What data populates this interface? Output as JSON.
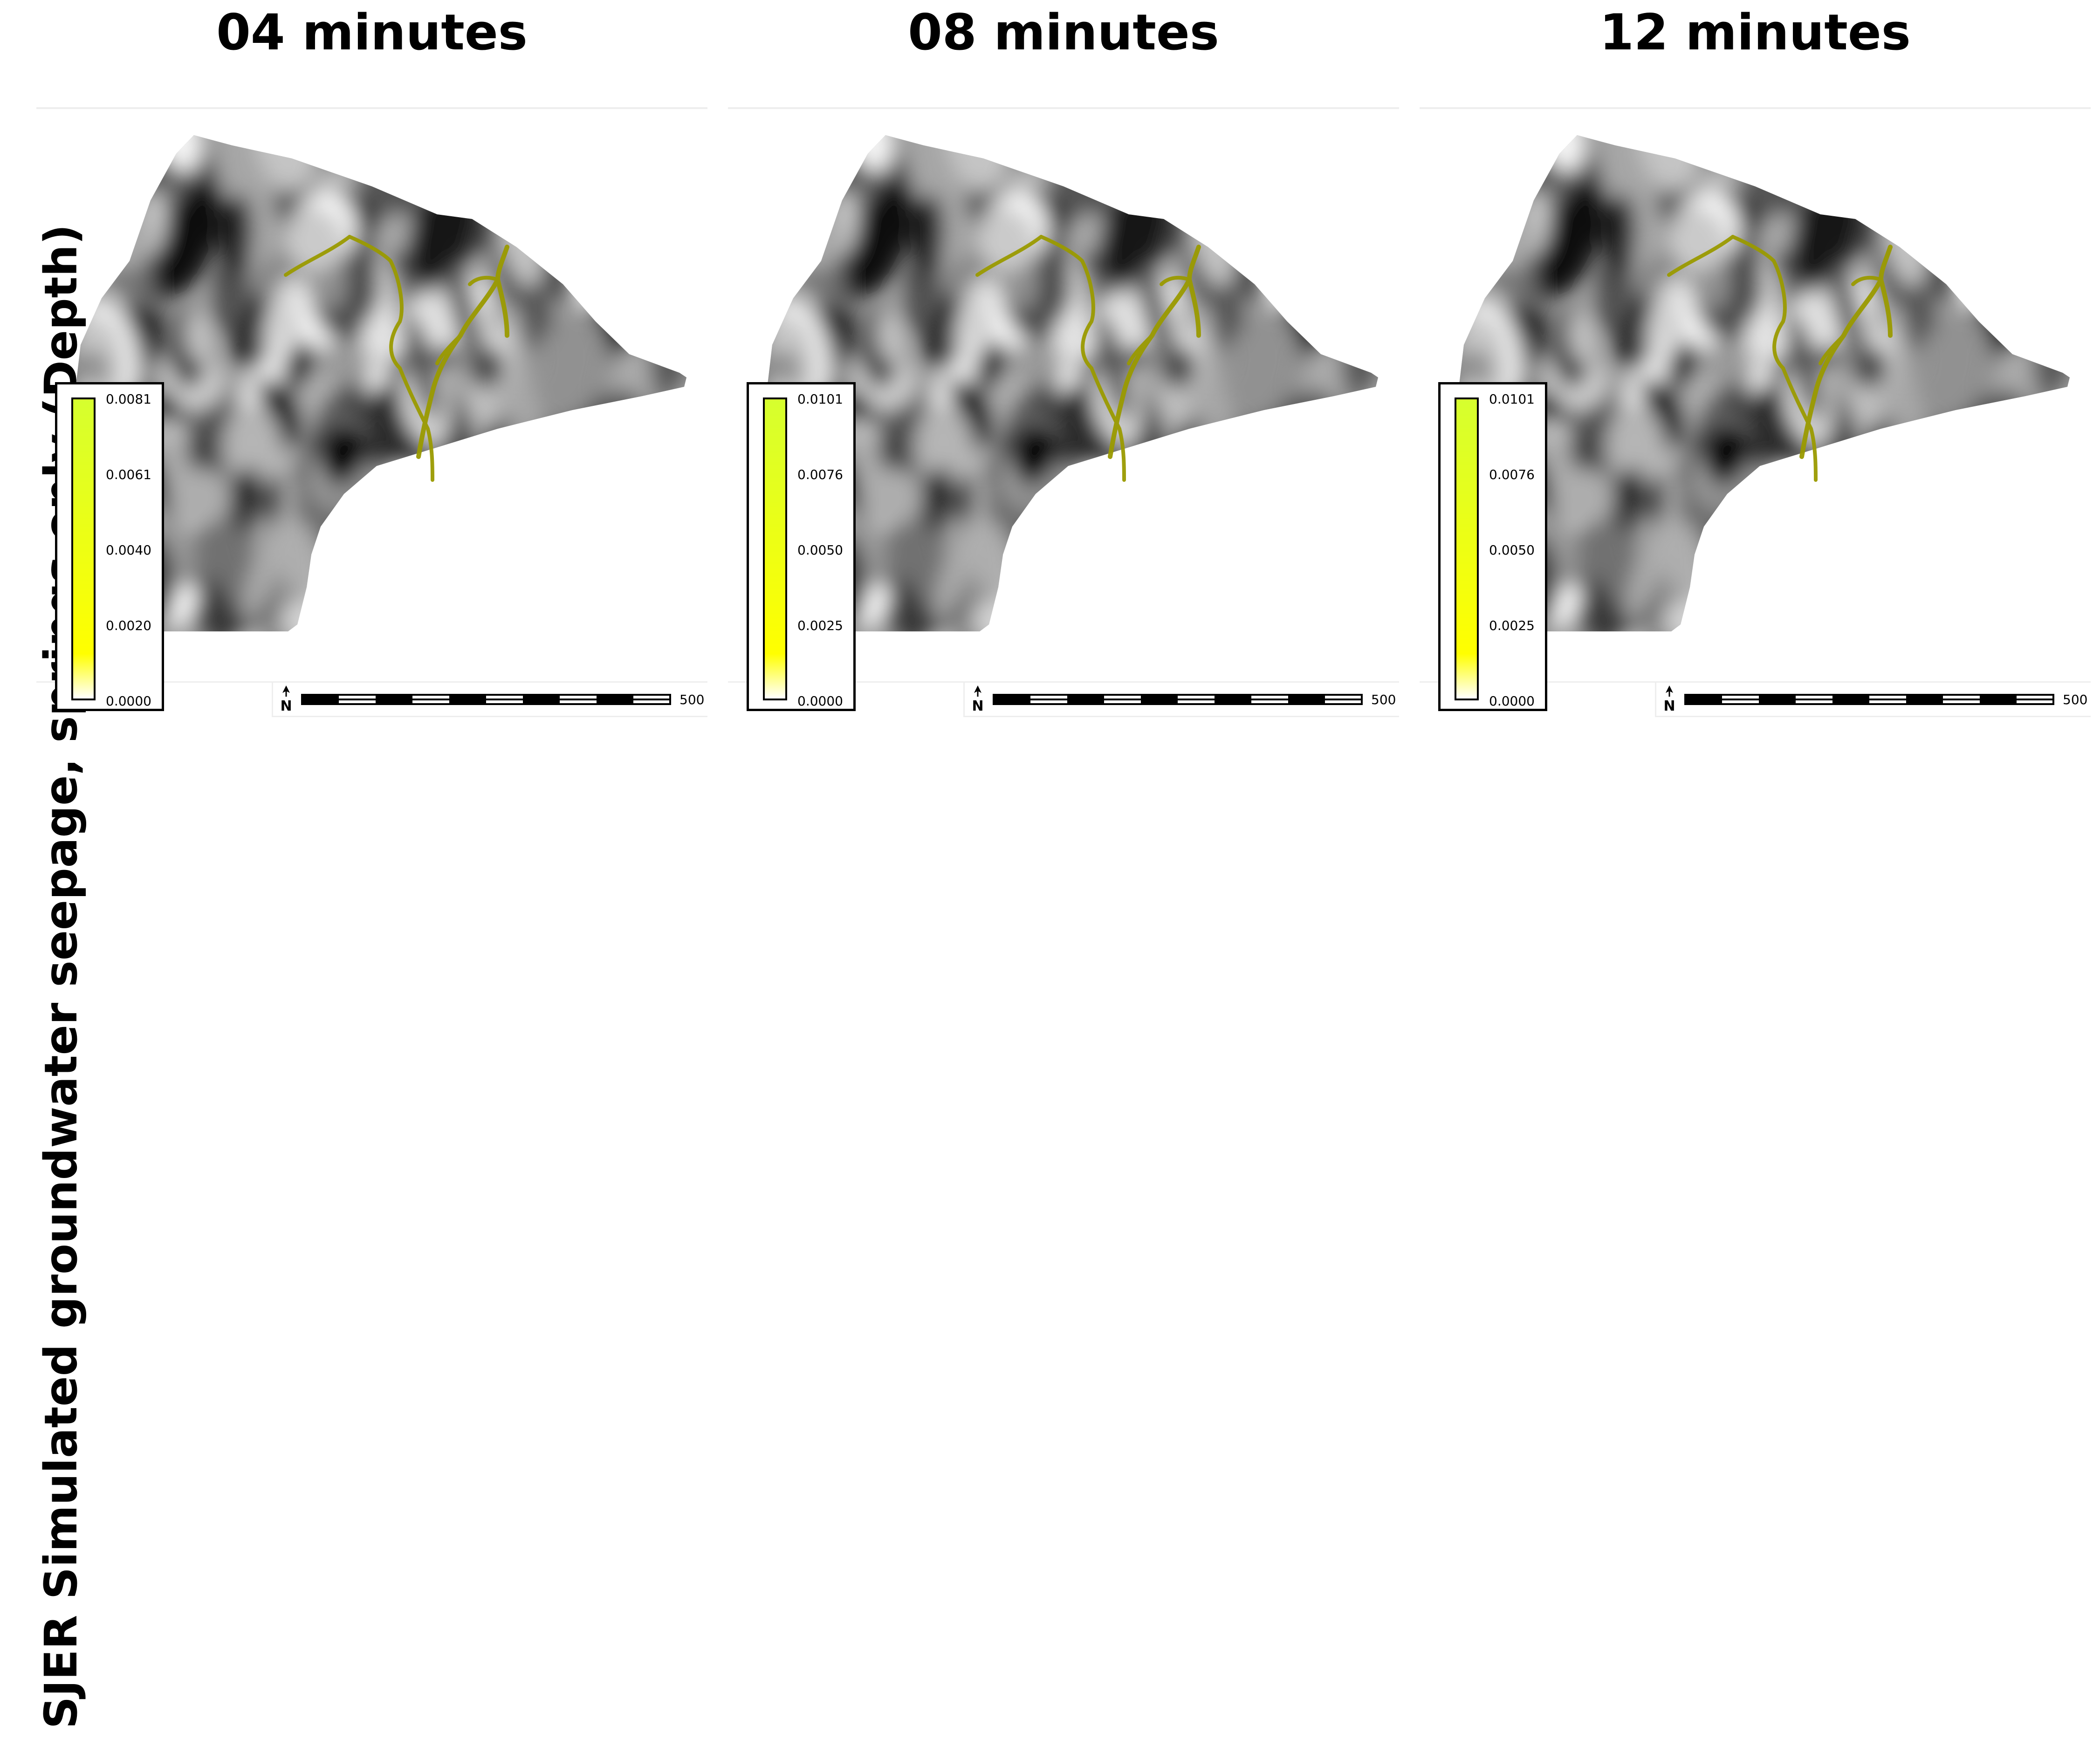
{
  "figure": {
    "title": "SJER Simulated groundwater seepage, springs only (Depth)"
  },
  "colors": {
    "stream": "#9a9a00",
    "legend_top": "#d6ff2e",
    "legend_mid": "#ffff00",
    "legend_bottom": "#ffffff"
  },
  "panels": [
    {
      "title": "04 minutes",
      "legend_ticks": [
        "0.0081",
        "0.0061",
        "0.0040",
        "0.0020",
        "0.0000"
      ],
      "scale_label": "500",
      "north_symbol": "N"
    },
    {
      "title": "08 minutes",
      "legend_ticks": [
        "0.0101",
        "0.0076",
        "0.0050",
        "0.0025",
        "0.0000"
      ],
      "scale_label": "500",
      "north_symbol": "N"
    },
    {
      "title": "12 minutes",
      "legend_ticks": [
        "0.0101",
        "0.0076",
        "0.0050",
        "0.0025",
        "0.0000"
      ],
      "scale_label": "500",
      "north_symbol": "N"
    }
  ]
}
